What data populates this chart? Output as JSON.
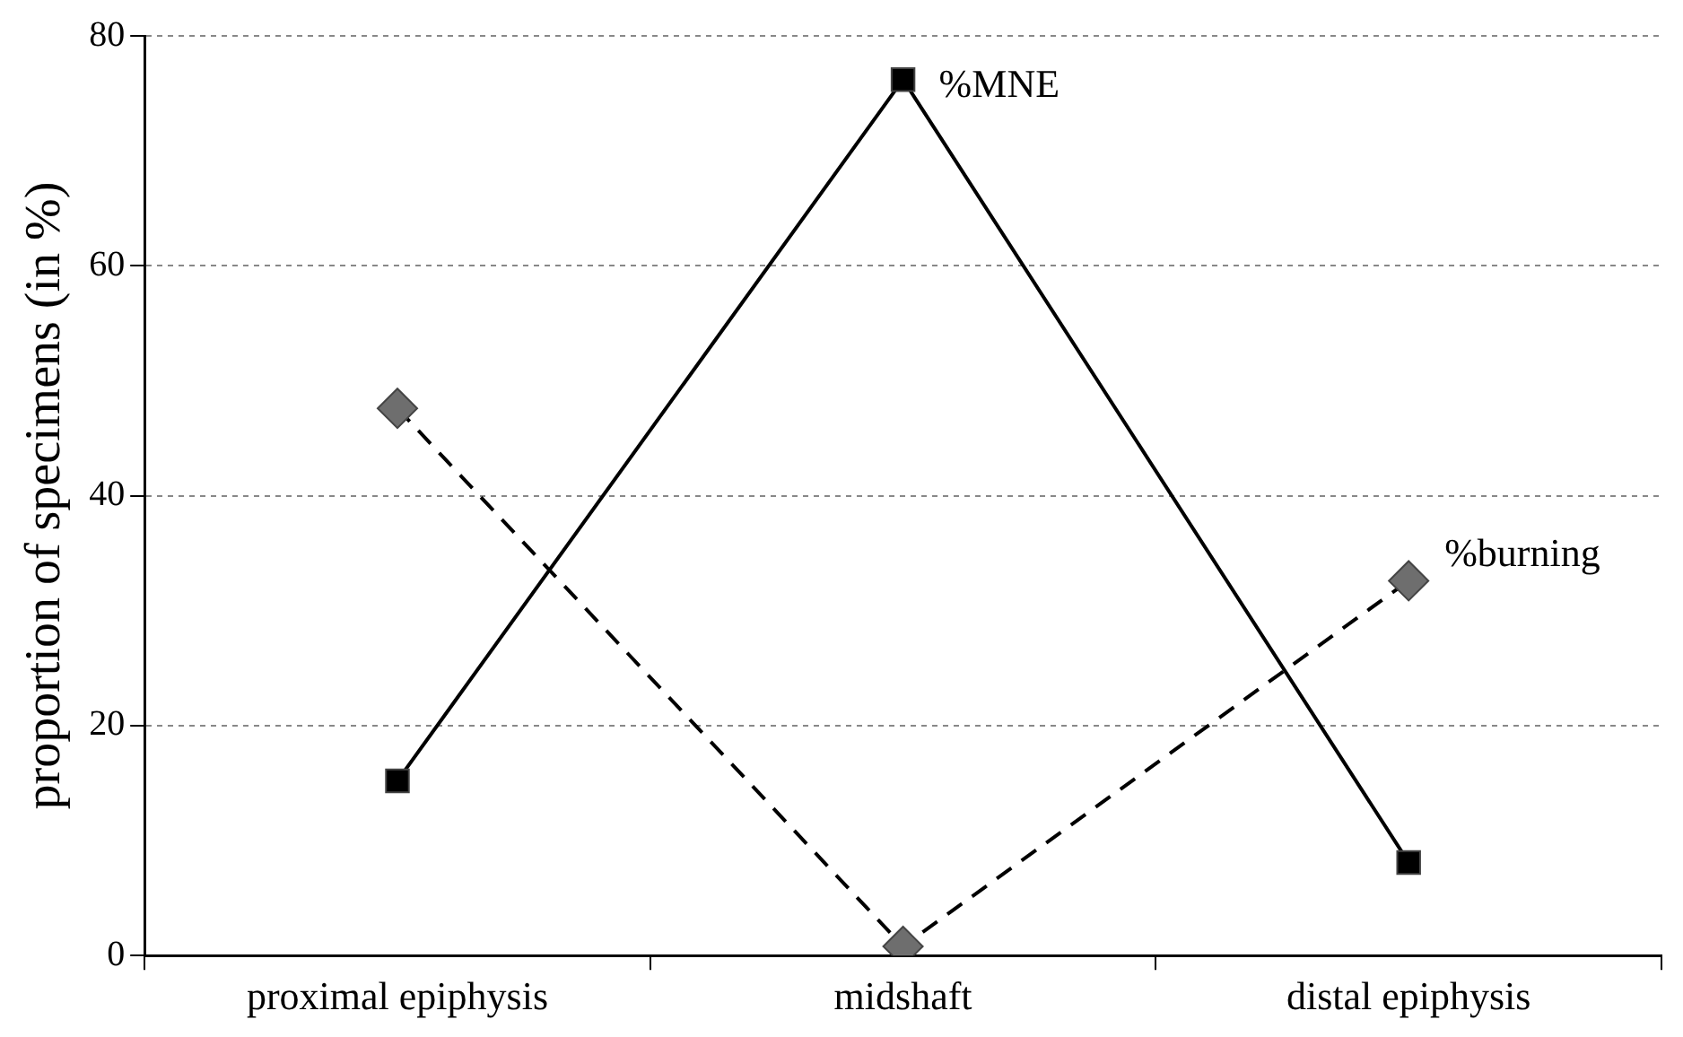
{
  "chart_data": {
    "type": "line",
    "ylabel": "proportion of specimens (in %)",
    "categories": [
      "proximal epiphysis",
      "midshaft",
      "distal epiphysis"
    ],
    "series": [
      {
        "name": "%MNE",
        "color": "#000000",
        "values": [
          15.2,
          76.2,
          8.1
        ],
        "marker": "square",
        "line_style": "solid"
      },
      {
        "name": "%burning",
        "color": "#6e6e6e",
        "values": [
          47.6,
          0.8,
          32.6
        ],
        "marker": "diamond",
        "line_style": "dashed"
      }
    ],
    "ylim": [
      0,
      80
    ],
    "yticks": [
      0,
      20,
      40,
      60,
      80
    ],
    "grid": "y",
    "legend": false
  }
}
